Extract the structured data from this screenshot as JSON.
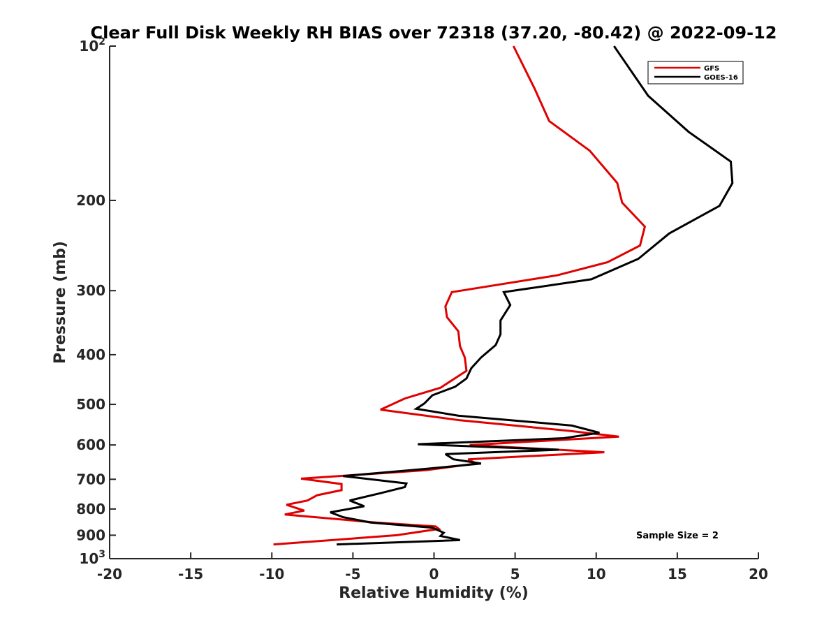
{
  "chart_data": {
    "type": "line",
    "orientation": "vertical-profile",
    "title": "Clear Full Disk Weekly RH BIAS over 72318 (37.20, -80.42) @ 2022-09-12",
    "xlabel": "Relative Humidity (%)",
    "ylabel": "Pressure (mb)",
    "xlim": [
      -20,
      20
    ],
    "ylim": [
      100,
      1000
    ],
    "y_scale": "log",
    "y_reversed": true,
    "grid": false,
    "legend_position": "top-right",
    "x_ticks": [
      -20,
      -15,
      -10,
      -5,
      0,
      5,
      10,
      15,
      20
    ],
    "x_tick_labels": [
      "-20",
      "-15",
      "-10",
      "-5",
      "0",
      "5",
      "10",
      "15",
      "20"
    ],
    "y_ticks": [
      100,
      200,
      300,
      400,
      500,
      600,
      700,
      800,
      900,
      1000
    ],
    "y_tick_labels": [
      {
        "base": "10",
        "exp": "2"
      },
      {
        "base": "200",
        "exp": ""
      },
      {
        "base": "300",
        "exp": ""
      },
      {
        "base": "400",
        "exp": ""
      },
      {
        "base": "500",
        "exp": ""
      },
      {
        "base": "600",
        "exp": ""
      },
      {
        "base": "700",
        "exp": ""
      },
      {
        "base": "800",
        "exp": ""
      },
      {
        "base": "900",
        "exp": ""
      },
      {
        "base": "10",
        "exp": "3"
      }
    ],
    "series": [
      {
        "name": "GFS",
        "color": "#e00000",
        "x": [
          4.9,
          6.2,
          7.1,
          9.6,
          11.3,
          11.6,
          13.0,
          12.7,
          10.7,
          7.6,
          1.1,
          0.7,
          0.8,
          1.5,
          1.6,
          1.9,
          2.0,
          0.4,
          -1.8,
          -3.3,
          1.6,
          8.3,
          11.4,
          2.2,
          10.5,
          2.1,
          2.6,
          -0.5,
          -8.2,
          -5.7,
          -5.7,
          -7.2,
          -7.8,
          -9.1,
          -8.0,
          -9.2,
          -3.6,
          0.1,
          0.3,
          -2.3,
          -9.9
        ],
        "y": [
          100,
          121,
          140,
          160,
          185,
          202,
          225,
          245,
          264,
          280,
          302,
          322,
          338,
          360,
          385,
          405,
          430,
          464,
          487,
          512,
          537,
          563,
          578,
          600,
          620,
          640,
          652,
          672,
          698,
          715,
          735,
          752,
          770,
          785,
          806,
          820,
          850,
          865,
          875,
          900,
          938
        ]
      },
      {
        "name": "GOES-16",
        "color": "#000000",
        "x": [
          11.1,
          13.2,
          15.7,
          18.3,
          18.4,
          17.6,
          14.5,
          12.6,
          9.7,
          4.3,
          4.7,
          4.1,
          4.1,
          3.8,
          2.9,
          2.3,
          2.0,
          1.3,
          -0.1,
          -0.6,
          -1.1,
          1.5,
          8.5,
          10.2,
          8.0,
          -1.0,
          7.7,
          0.7,
          1.2,
          2.9,
          -0.5,
          -5.6,
          -1.7,
          -1.8,
          -3.3,
          -5.2,
          -4.3,
          -6.4,
          -5.6,
          -3.9,
          -0.1,
          0.6,
          0.4,
          1.6,
          -6.0
        ],
        "y": [
          100,
          125,
          147,
          168,
          185,
          205,
          232,
          260,
          285,
          302,
          320,
          343,
          365,
          383,
          405,
          425,
          445,
          462,
          480,
          498,
          510,
          526,
          550,
          568,
          582,
          598,
          613,
          625,
          640,
          652,
          668,
          690,
          713,
          725,
          745,
          770,
          790,
          812,
          830,
          850,
          870,
          890,
          903,
          920,
          938
        ]
      }
    ],
    "annotations": [
      {
        "text": "Sample Size = 2"
      }
    ]
  }
}
